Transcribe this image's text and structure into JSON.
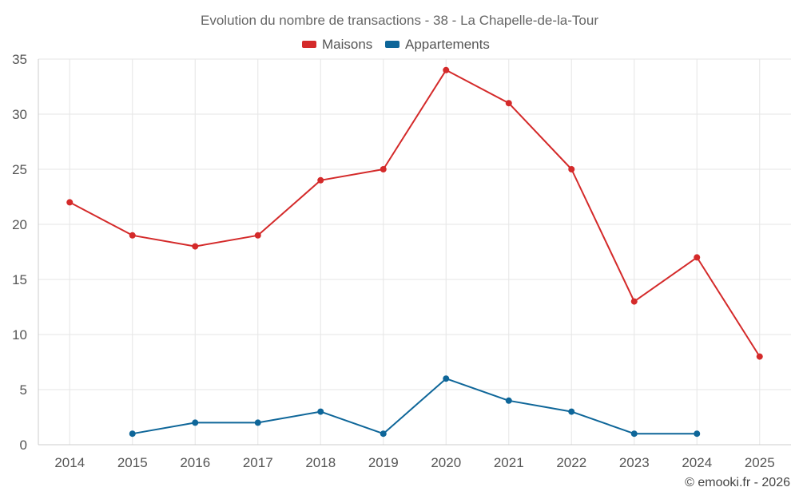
{
  "chart_data": {
    "type": "line",
    "title": "Evolution du nombre de transactions - 38 - La Chapelle-de-la-Tour",
    "categories": [
      "2014",
      "2015",
      "2016",
      "2017",
      "2018",
      "2019",
      "2020",
      "2021",
      "2022",
      "2023",
      "2024",
      "2025"
    ],
    "series": [
      {
        "name": "Maisons",
        "color": "#d42a2a",
        "values": [
          22,
          19,
          18,
          19,
          24,
          25,
          34,
          31,
          25,
          13,
          17,
          8
        ]
      },
      {
        "name": "Appartements",
        "color": "#0e6699",
        "values": [
          null,
          1,
          2,
          2,
          3,
          1,
          6,
          4,
          3,
          1,
          1,
          null
        ]
      }
    ],
    "ylim": [
      0,
      35
    ],
    "yticks": [
      "0",
      "5",
      "10",
      "15",
      "20",
      "25",
      "30",
      "35"
    ],
    "grid": true,
    "legend": "top-center",
    "xlabel": "",
    "ylabel": ""
  },
  "credit": "© emooki.fr - 2026"
}
